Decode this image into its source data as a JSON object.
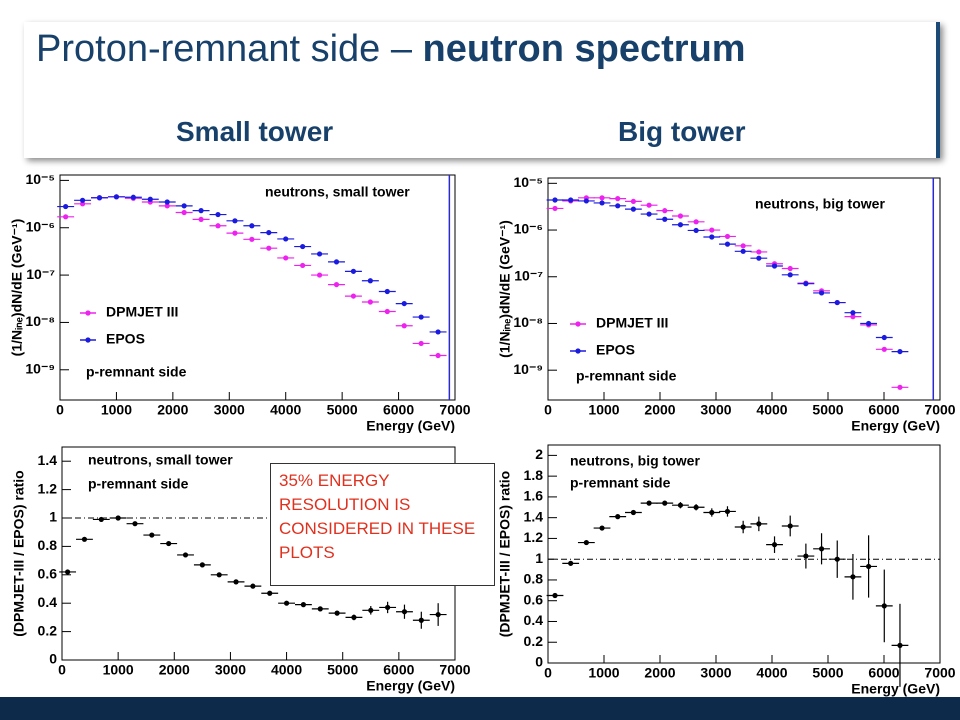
{
  "title": "Proton-remnant side –",
  "title_emphasis": "neutron spectrum",
  "headings": [
    "Small tower",
    "Big tower"
  ],
  "note": "35% ENERGY RESOLUTION IS CONSIDERED IN THESE PLOTS",
  "chart_data": [
    {
      "type": "scatter",
      "log_y": true,
      "annotations": [
        "neutrons, small tower",
        "p-remnant side"
      ],
      "x_label": "Energy (GeV)",
      "y_label": "(1/Nᵢₙₑ)dN/dE (GeV⁻¹)",
      "xlim": [
        0,
        7000
      ],
      "xticks": [
        0,
        1000,
        2000,
        3000,
        4000,
        5000,
        6000,
        7000
      ],
      "ylim": [
        2.3e-10,
        1.3e-05
      ],
      "yticks": [
        {
          "value": 1e-09,
          "label": "10⁻⁹"
        },
        {
          "value": 1e-08,
          "label": "10⁻⁸"
        },
        {
          "value": 1e-07,
          "label": "10⁻⁷"
        },
        {
          "value": 1e-06,
          "label": "10⁻⁶"
        },
        {
          "value": 1e-05,
          "label": "10⁻⁵"
        }
      ],
      "vline": 6900,
      "vline_color": "#2a2ad0",
      "x": [
        100,
        400,
        700,
        1000,
        1300,
        1600,
        1900,
        2200,
        2500,
        2800,
        3100,
        3400,
        3700,
        4000,
        4300,
        4600,
        4900,
        5200,
        5500,
        5800,
        6100,
        6400,
        6700
      ],
      "series": [
        {
          "name": "DPMJET III",
          "color": "#ee22ee",
          "values": [
            1.7e-06,
            3.2e-06,
            4.3e-06,
            4.5e-06,
            4.2e-06,
            3.5e-06,
            2.9e-06,
            2.1e-06,
            1.5e-06,
            1.1e-06,
            7.7e-07,
            5.7e-07,
            3.7e-07,
            2.3e-07,
            1.6e-07,
            1e-07,
            6.3e-08,
            3.6e-08,
            2.7e-08,
            1.7e-08,
            8.5e-09,
            3.6e-09,
            2e-09
          ]
        },
        {
          "name": "EPOS",
          "color": "#1a1ae0",
          "values": [
            2.8e-06,
            3.8e-06,
            4.3e-06,
            4.5e-06,
            4.4e-06,
            4e-06,
            3.5e-06,
            2.9e-06,
            2.3e-06,
            1.9e-06,
            1.4e-06,
            1.1e-06,
            7.9e-07,
            5.8e-07,
            4e-07,
            2.8e-07,
            1.9e-07,
            1.2e-07,
            7.6e-08,
            4.5e-08,
            2.5e-08,
            1.3e-08,
            6.3e-09
          ]
        }
      ]
    },
    {
      "type": "scatter",
      "log_y": true,
      "annotations": [
        "neutrons, big tower",
        "p-remnant side"
      ],
      "x_label": "Energy (GeV)",
      "y_label": "(1/Nᵢₙₑ)dN/dE (GeV⁻¹)",
      "xlim": [
        0,
        7000
      ],
      "xticks": [
        0,
        1000,
        2000,
        3000,
        4000,
        5000,
        6000,
        7000
      ],
      "ylim": [
        2.3e-10,
        1.3e-05
      ],
      "yticks": [
        {
          "value": 1e-09,
          "label": "10⁻⁹"
        },
        {
          "value": 1e-08,
          "label": "10⁻⁸"
        },
        {
          "value": 1e-07,
          "label": "10⁻⁷"
        },
        {
          "value": 1e-06,
          "label": "10⁻⁶"
        },
        {
          "value": 1e-05,
          "label": "10⁻⁵"
        }
      ],
      "vline": 6880,
      "vline_color": "#2a2ad0",
      "x": [
        125,
        405,
        685,
        965,
        1245,
        1525,
        1805,
        2085,
        2365,
        2645,
        2925,
        3205,
        3485,
        3765,
        4045,
        4325,
        4605,
        4885,
        5165,
        5445,
        5725,
        6005,
        6285
      ],
      "series": [
        {
          "name": "DPMJET III",
          "color": "#ee22ee",
          "values": [
            2.9e-06,
            4.2e-06,
            4.9e-06,
            4.9e-06,
            4.7e-06,
            4.1e-06,
            3.4e-06,
            2.6e-06,
            2e-06,
            1.5e-06,
            1e-06,
            7.3e-07,
            4.6e-07,
            3.4e-07,
            1.9e-07,
            1.5e-07,
            7.3e-08,
            5e-08,
            2.8e-08,
            1.4e-08,
            9.3e-09,
            2.8e-09,
            4.3e-10
          ]
        },
        {
          "name": "EPOS",
          "color": "#1a1ae0",
          "values": [
            4.4e-06,
            4.4e-06,
            4.2e-06,
            3.8e-06,
            3.3e-06,
            2.8e-06,
            2.2e-06,
            1.7e-06,
            1.3e-06,
            9.8e-07,
            7.1e-07,
            5e-07,
            3.5e-07,
            2.5e-07,
            1.7e-07,
            1.1e-07,
            7.1e-08,
            4.5e-08,
            2.8e-08,
            1.7e-08,
            1e-08,
            5e-09,
            2.5e-09
          ]
        }
      ]
    },
    {
      "type": "scatter",
      "log_y": false,
      "annotations": [
        "neutrons, small tower",
        "p-remnant side"
      ],
      "x_label": "Energy (GeV)",
      "y_label": "(DPMJET-III / EPOS) ratio",
      "xlim": [
        0,
        7000
      ],
      "xticks": [
        0,
        1000,
        2000,
        3000,
        4000,
        5000,
        6000,
        7000
      ],
      "ylim": [
        0,
        1.5
      ],
      "yticks": [
        0,
        0.2,
        0.4,
        0.6,
        0.8,
        1,
        1.2,
        1.4
      ],
      "refline": 1,
      "x": [
        100,
        400,
        700,
        1000,
        1300,
        1600,
        1900,
        2200,
        2500,
        2800,
        3100,
        3400,
        3700,
        4000,
        4300,
        4600,
        4900,
        5200,
        5500,
        5800,
        6100,
        6400,
        6700
      ],
      "series": [
        {
          "color": "#000000",
          "values": [
            0.62,
            0.85,
            0.99,
            1.0,
            0.96,
            0.88,
            0.82,
            0.74,
            0.67,
            0.6,
            0.55,
            0.52,
            0.47,
            0.4,
            0.39,
            0.36,
            0.33,
            0.3,
            0.35,
            0.37,
            0.34,
            0.28,
            0.32
          ],
          "errors": [
            0.01,
            0.01,
            0.01,
            0.01,
            0.01,
            0.01,
            0.01,
            0.01,
            0.01,
            0.01,
            0.01,
            0.01,
            0.01,
            0.01,
            0.01,
            0.01,
            0.01,
            0.02,
            0.03,
            0.04,
            0.05,
            0.06,
            0.08
          ]
        }
      ]
    },
    {
      "type": "scatter",
      "log_y": false,
      "annotations": [
        "neutrons, big tower",
        "p-remnant side"
      ],
      "x_label": "Energy (GeV)",
      "y_label": "(DPMJET-III / EPOS) ratio",
      "xlim": [
        0,
        7000
      ],
      "xticks": [
        0,
        1000,
        2000,
        3000,
        4000,
        5000,
        6000,
        7000
      ],
      "ylim": [
        0,
        2.1
      ],
      "yticks": [
        0,
        0.2,
        0.4,
        0.6,
        0.8,
        1,
        1.2,
        1.4,
        1.6,
        1.8,
        2
      ],
      "refline": 1,
      "x": [
        125,
        405,
        685,
        965,
        1245,
        1525,
        1805,
        2085,
        2365,
        2645,
        2925,
        3205,
        3485,
        3765,
        4045,
        4325,
        4605,
        4885,
        5165,
        5445,
        5725,
        6005,
        6285
      ],
      "series": [
        {
          "color": "#000000",
          "values": [
            0.65,
            0.96,
            1.16,
            1.3,
            1.41,
            1.45,
            1.54,
            1.54,
            1.52,
            1.5,
            1.45,
            1.46,
            1.31,
            1.34,
            1.14,
            1.32,
            1.03,
            1.1,
            1.0,
            0.83,
            0.93,
            0.55,
            0.17
          ],
          "errors": [
            0.01,
            0.01,
            0.01,
            0.01,
            0.02,
            0.02,
            0.02,
            0.02,
            0.03,
            0.03,
            0.04,
            0.05,
            0.06,
            0.07,
            0.08,
            0.1,
            0.12,
            0.15,
            0.18,
            0.22,
            0.3,
            0.35,
            0.4
          ]
        }
      ]
    }
  ]
}
